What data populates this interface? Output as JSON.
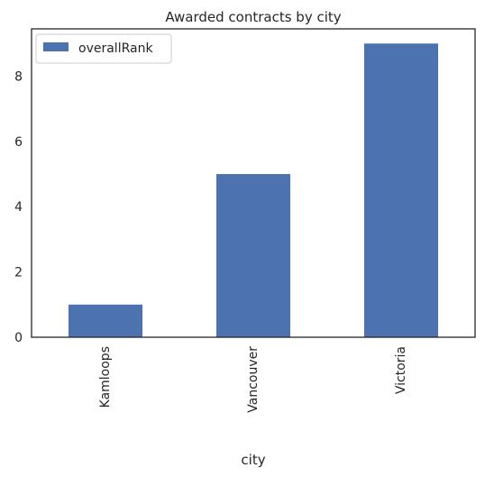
{
  "chart_data": {
    "type": "bar",
    "title": "Awarded contracts by city",
    "xlabel": "city",
    "ylabel": "",
    "categories": [
      "Kamloops",
      "Vancouver",
      "Victoria"
    ],
    "series": [
      {
        "name": "overallRank",
        "values": [
          1,
          5,
          9
        ],
        "color": "#4c72b0"
      }
    ],
    "ylim": [
      0,
      9.45
    ],
    "yticks": [
      0,
      2,
      4,
      6,
      8
    ],
    "grid": false,
    "legend_position": "top-left"
  }
}
